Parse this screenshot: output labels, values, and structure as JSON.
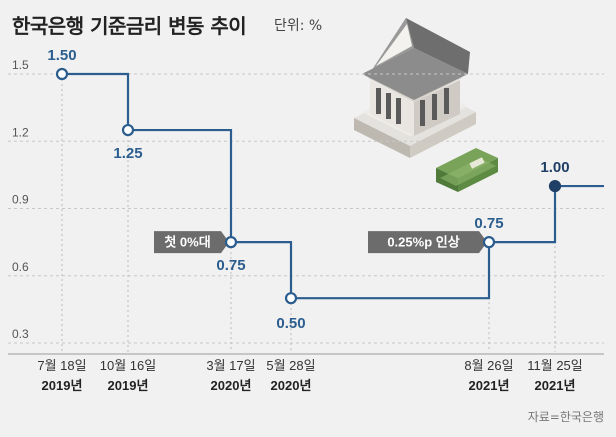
{
  "title": "한국은행 기준금리 변동 추이",
  "unit_label": "단위: %",
  "source": "자료=한국은행",
  "chart_data": {
    "type": "line",
    "step": true,
    "title": "한국은행 기준금리 변동 추이",
    "ylabel": "",
    "xlabel": "",
    "ylim": [
      0.3,
      1.5
    ],
    "y_ticks": [
      "1.5",
      "1.2",
      "0.9",
      "0.6",
      "0.3"
    ],
    "grid": true,
    "points": [
      {
        "date": "7월 18일",
        "year": "2019년",
        "value": 1.5,
        "label": "1.50"
      },
      {
        "date": "10월 16일",
        "year": "2019년",
        "value": 1.25,
        "label": "1.25"
      },
      {
        "date": "3월 17일",
        "year": "2020년",
        "value": 0.75,
        "label": "0.75"
      },
      {
        "date": "5월 28일",
        "year": "2020년",
        "value": 0.5,
        "label": "0.50"
      },
      {
        "date": "8월 26일",
        "year": "2021년",
        "value": 0.75,
        "label": "0.75"
      },
      {
        "date": "11월 25일",
        "year": "2021년",
        "value": 1.0,
        "label": "1.00"
      }
    ],
    "annotations": [
      {
        "text": "첫 0%대",
        "point_index": 2
      },
      {
        "text": "0.25%p 인상",
        "point_index": 4
      }
    ],
    "colors": {
      "line": "#2b5d8e",
      "last_point": "#1f3f66",
      "annotation_bg": "#6c6c6c",
      "grid": "#c8c8c8"
    }
  },
  "illustration": {
    "icon": "bank-building-icon"
  }
}
